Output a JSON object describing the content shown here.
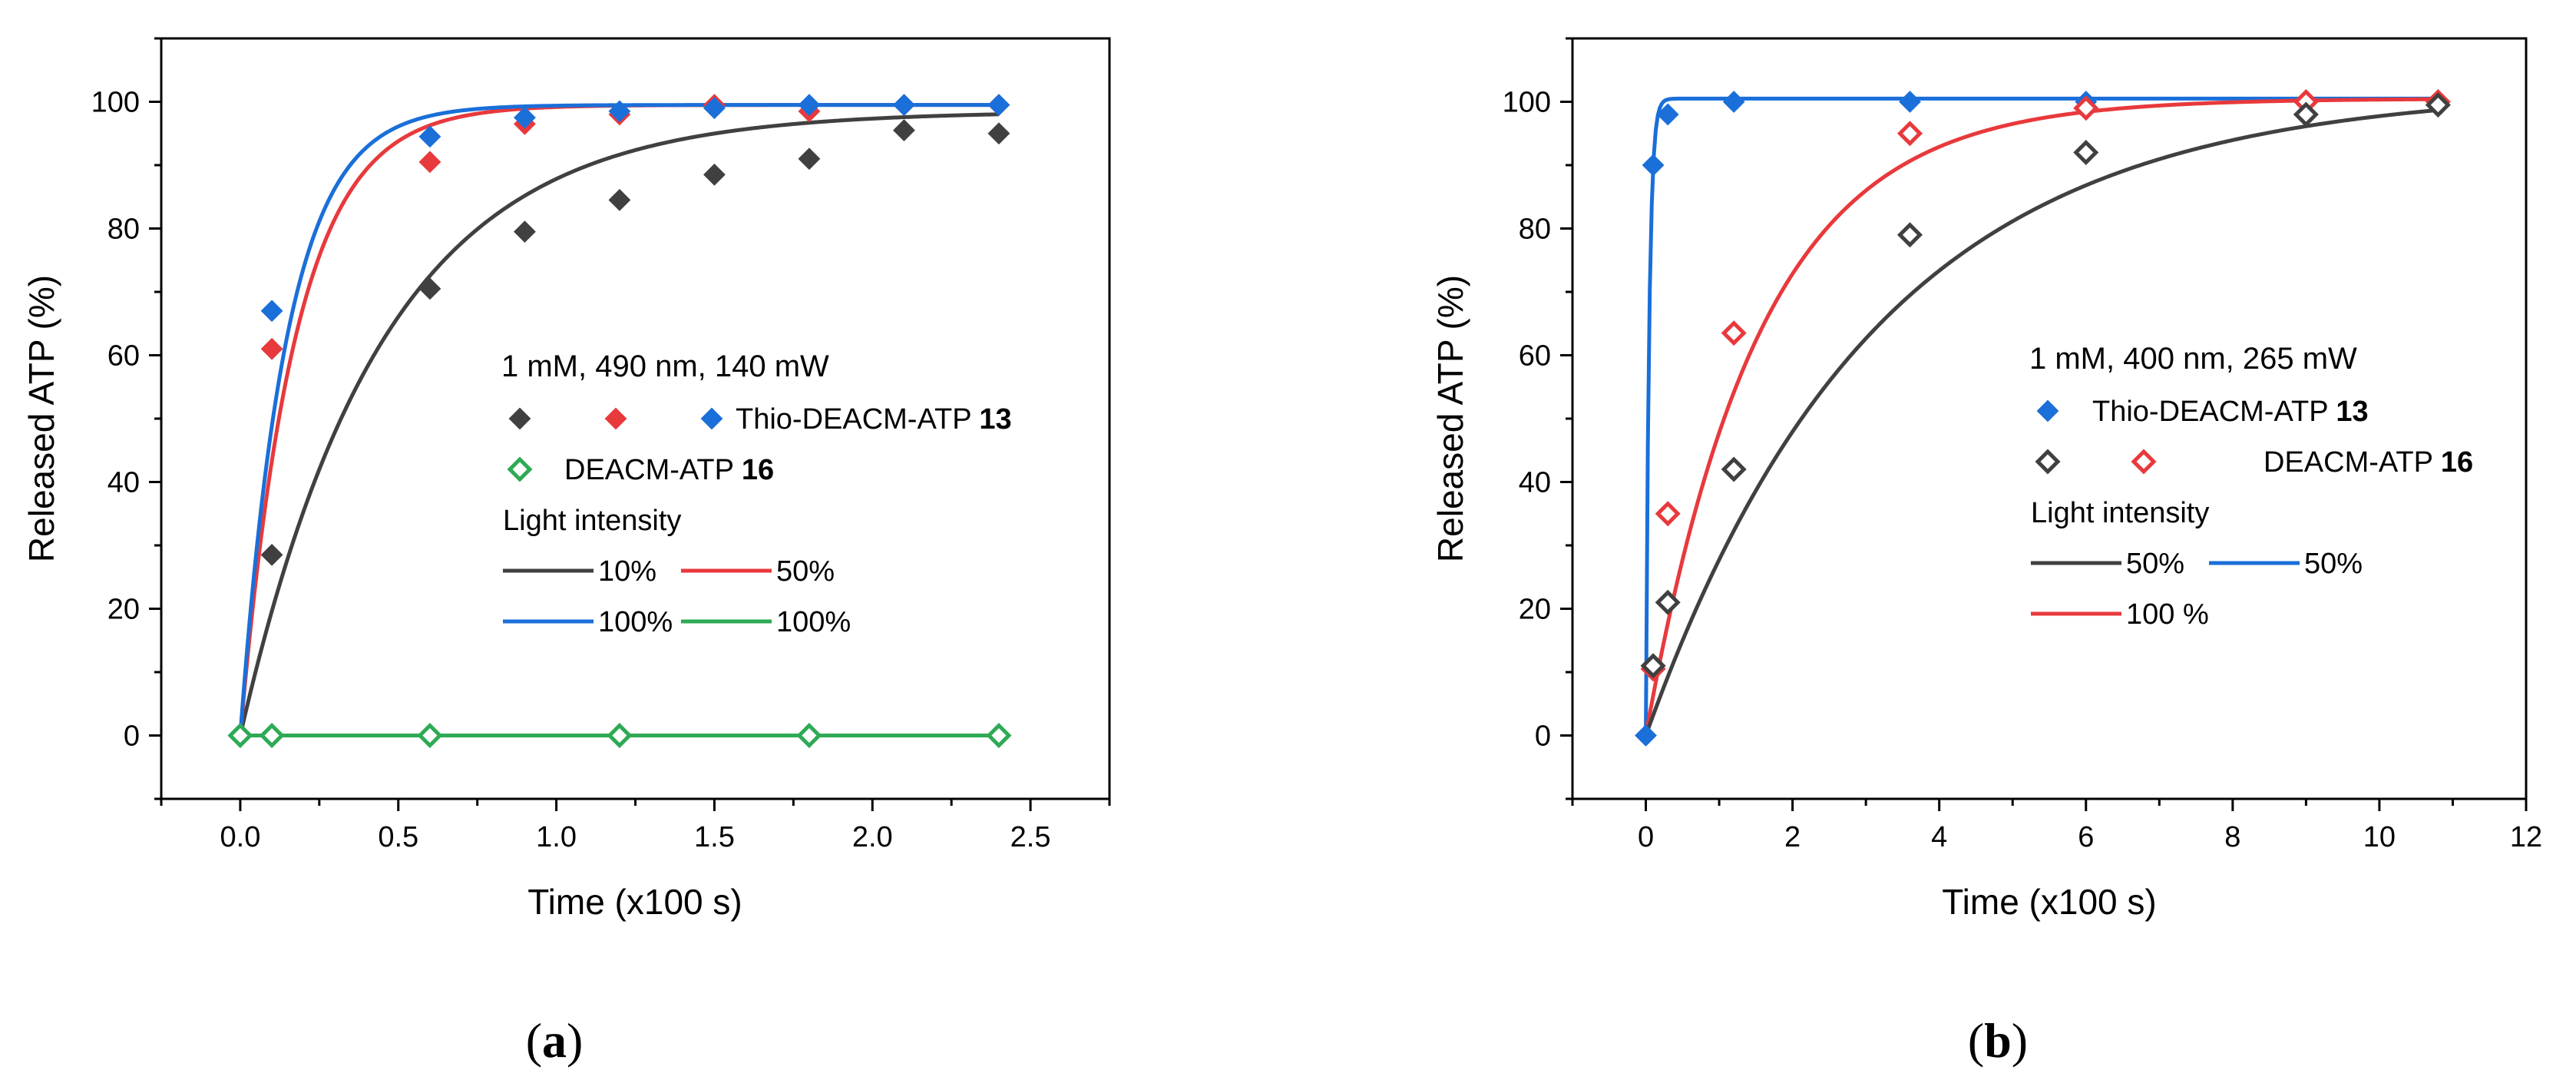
{
  "chart_data": [
    {
      "panel_label": "(a)",
      "panel_letter": "a",
      "type": "scatter",
      "xlabel": "Time (x100 s)",
      "ylabel": "Released ATP (%)",
      "xlim": [
        -0.25,
        2.75
      ],
      "ylim": [
        -10,
        110
      ],
      "x_ticks": [
        0.0,
        0.5,
        1.0,
        1.5,
        2.0,
        2.5
      ],
      "x_tick_labels": [
        "0.0",
        "0.5",
        "1.0",
        "1.5",
        "2.0",
        "2.5"
      ],
      "y_ticks": [
        0,
        20,
        40,
        60,
        80,
        100
      ],
      "y_tick_labels": [
        "0",
        "20",
        "40",
        "60",
        "80",
        "100"
      ],
      "grid": false,
      "legend_placement": "center",
      "legend": {
        "condition": "1 mM, 490 nm, 140 mW",
        "marker_rows": [
          {
            "markers": [
              "#404040",
              "#e8393c",
              "#1a6fd9"
            ],
            "filled": true,
            "name": "Thio-DEACM-ATP ",
            "bold": "13"
          },
          {
            "markers": [
              "#2eaa55"
            ],
            "filled": false,
            "name": "DEACM-ATP ",
            "bold": "16"
          }
        ],
        "intensity_title": "Light intensity",
        "line_rows": [
          [
            {
              "color": "#404040",
              "label": "10%"
            },
            {
              "color": "#e8393c",
              "label": "50%"
            }
          ],
          [
            {
              "color": "#1a6fd9",
              "label": "100%"
            },
            {
              "color": "#2eaa55",
              "label": "100%"
            }
          ]
        ]
      },
      "series": [
        {
          "compound": "Thio-DEACM-ATP 13",
          "intensity": "10%",
          "color": "#404040",
          "marker": "diamond",
          "filled": true,
          "x": [
            0,
            0.1,
            0.6,
            0.9,
            1.2,
            1.5,
            1.8,
            2.1,
            2.4
          ],
          "y": [
            0,
            28.5,
            70.5,
            79.5,
            84.5,
            88.5,
            91,
            95.5,
            95
          ],
          "fit": {
            "amplitude": 98.5,
            "tau": 0.45,
            "x_start": 0,
            "x_end": 2.4
          }
        },
        {
          "compound": "Thio-DEACM-ATP 13",
          "intensity": "50%",
          "color": "#e8393c",
          "marker": "diamond",
          "filled": true,
          "x": [
            0,
            0.1,
            0.6,
            0.9,
            1.2,
            1.5,
            1.8,
            2.1,
            2.4
          ],
          "y": [
            0,
            61,
            90.5,
            96.5,
            98,
            99.5,
            98.5,
            99.5,
            99.5
          ],
          "fit": {
            "amplitude": 99.5,
            "tau": 0.175,
            "x_start": 0,
            "x_end": 2.4
          }
        },
        {
          "compound": "Thio-DEACM-ATP 13",
          "intensity": "100%",
          "color": "#1a6fd9",
          "marker": "diamond",
          "filled": true,
          "x": [
            0,
            0.1,
            0.6,
            0.9,
            1.2,
            1.5,
            1.8,
            2.1,
            2.4
          ],
          "y": [
            0,
            67,
            94.5,
            97.5,
            98.5,
            99,
            99.5,
            99.5,
            99.5
          ],
          "fit": {
            "amplitude": 99.5,
            "tau": 0.148,
            "x_start": 0,
            "x_end": 2.4
          }
        },
        {
          "compound": "DEACM-ATP 16",
          "intensity": "100%",
          "color": "#2eaa55",
          "marker": "diamond",
          "filled": false,
          "x": [
            0,
            0.1,
            0.6,
            1.2,
            1.8,
            2.4
          ],
          "y": [
            0,
            0,
            0,
            0,
            0,
            0
          ],
          "fit": {
            "amplitude": 0,
            "tau": 1,
            "x_start": 0,
            "x_end": 2.4
          }
        }
      ]
    },
    {
      "panel_label": "(b)",
      "panel_letter": "b",
      "type": "scatter",
      "xlabel": "Time (x100 s)",
      "ylabel": "Released ATP (%)",
      "xlim": [
        -1,
        12
      ],
      "ylim": [
        -10,
        110
      ],
      "x_ticks": [
        0,
        2,
        4,
        6,
        8,
        10,
        12
      ],
      "x_tick_labels": [
        "0",
        "2",
        "4",
        "6",
        "8",
        "10",
        "12"
      ],
      "y_ticks": [
        0,
        20,
        40,
        60,
        80,
        100
      ],
      "y_tick_labels": [
        "0",
        "20",
        "40",
        "60",
        "80",
        "100"
      ],
      "grid": false,
      "legend_placement": "center",
      "legend": {
        "condition": "1 mM, 400 nm, 265 mW",
        "marker_rows": [
          {
            "markers": [
              "#1a6fd9"
            ],
            "filled": true,
            "name": "Thio-DEACM-ATP ",
            "bold": "13"
          },
          {
            "markers": [
              "#404040",
              "#e8393c"
            ],
            "filled": false,
            "name": "DEACM-ATP ",
            "bold": "16"
          }
        ],
        "intensity_title": "Light intensity",
        "line_rows": [
          [
            {
              "color": "#404040",
              "label": "50%"
            },
            {
              "color": "#1a6fd9",
              "label": "50%"
            }
          ],
          [
            {
              "color": "#e8393c",
              "label": "100 %"
            }
          ]
        ]
      },
      "series": [
        {
          "compound": "Thio-DEACM-ATP 13",
          "intensity": "50%",
          "color": "#1a6fd9",
          "marker": "diamond",
          "filled": true,
          "x": [
            0,
            0.1,
            0.3,
            1.2,
            3.6,
            6,
            9,
            10.8
          ],
          "y": [
            0,
            90,
            98,
            100,
            100,
            100,
            100,
            100
          ],
          "fit": {
            "amplitude": 100.5,
            "tau": 0.045,
            "x_start": 0,
            "x_end": 10.8
          }
        },
        {
          "compound": "DEACM-ATP 16",
          "intensity": "100 %",
          "color": "#e8393c",
          "marker": "diamond",
          "filled": false,
          "x": [
            0.1,
            0.3,
            1.2,
            3.6,
            6,
            9,
            10.8
          ],
          "y": [
            10.5,
            35,
            63.5,
            95,
            99,
            100,
            100
          ],
          "fit": {
            "amplitude": 100.5,
            "tau": 1.55,
            "x_start": 0,
            "x_end": 10.8
          }
        },
        {
          "compound": "DEACM-ATP 16",
          "intensity": "50%",
          "color": "#404040",
          "marker": "diamond",
          "filled": false,
          "x": [
            0.1,
            0.3,
            1.2,
            3.6,
            6,
            9,
            10.8
          ],
          "y": [
            11,
            21,
            42,
            79,
            92,
            98,
            99.5
          ],
          "fit": {
            "amplitude": 102,
            "tau": 3.15,
            "x_start": 0,
            "x_end": 10.8
          }
        }
      ]
    }
  ]
}
